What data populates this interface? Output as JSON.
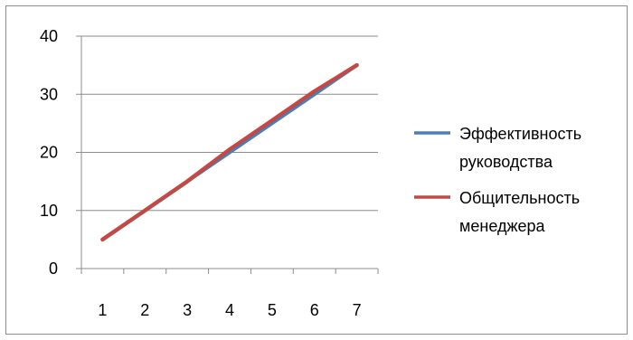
{
  "chart_data": {
    "type": "line",
    "title": "",
    "xlabel": "",
    "ylabel": "",
    "categories": [
      "1",
      "2",
      "3",
      "4",
      "5",
      "6",
      "7"
    ],
    "ylim": [
      0,
      40
    ],
    "yticks": [
      0,
      10,
      20,
      30,
      40
    ],
    "grid": true,
    "legend_position": "right",
    "series": [
      {
        "name": "Эффективность руководства",
        "name_lines": [
          "Эффективность",
          "руководства"
        ],
        "values": [
          5,
          10,
          15,
          20,
          25,
          30,
          35
        ],
        "color": "#4a7ebb"
      },
      {
        "name": "Общительность менеджера",
        "name_lines": [
          "Общительность",
          "менеджера"
        ],
        "values": [
          5,
          10,
          15,
          20.5,
          25.5,
          30.5,
          35
        ],
        "color": "#be4b48"
      }
    ]
  }
}
